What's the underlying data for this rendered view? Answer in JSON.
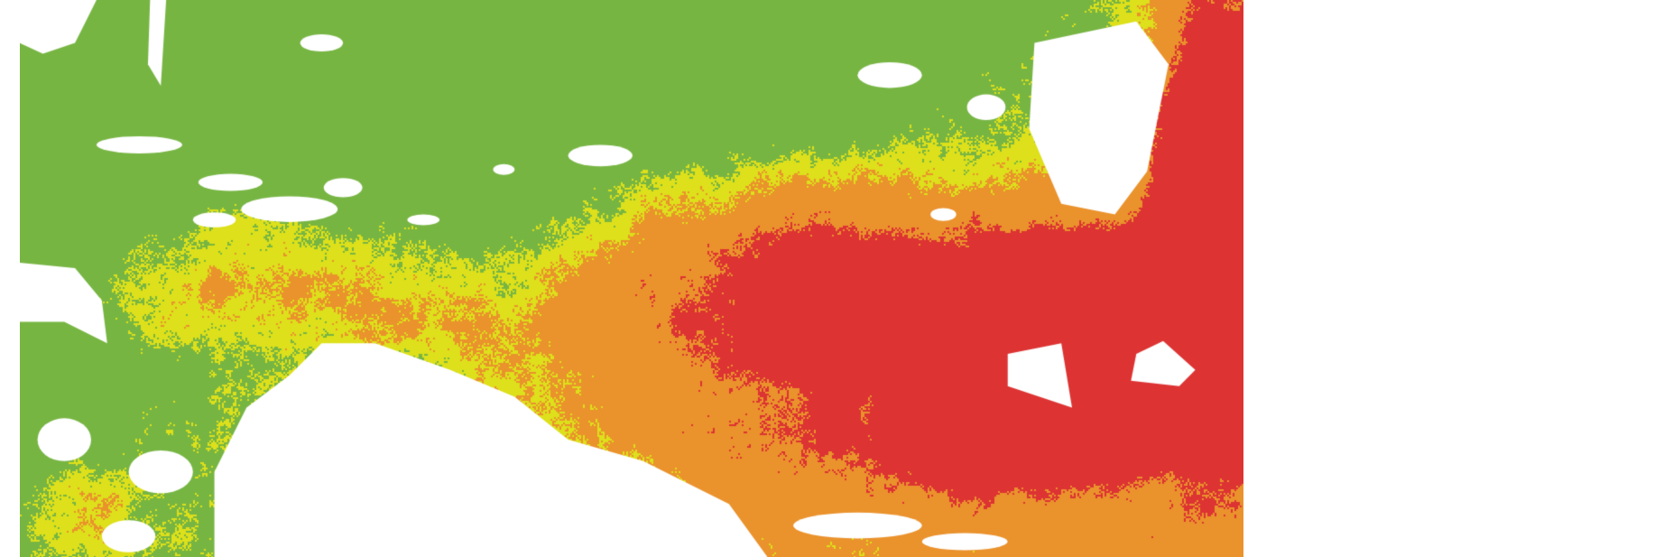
{
  "map": {
    "type": "classified raster",
    "background": "#ffffff",
    "no_data_color": "#ffffff",
    "classes": [
      {
        "level": 1,
        "color": "#77b543"
      },
      {
        "level": 2,
        "color": "#dde01a"
      },
      {
        "level": 3,
        "color": "#ea922c"
      },
      {
        "level": 4,
        "color": "#dd3333"
      }
    ]
  }
}
